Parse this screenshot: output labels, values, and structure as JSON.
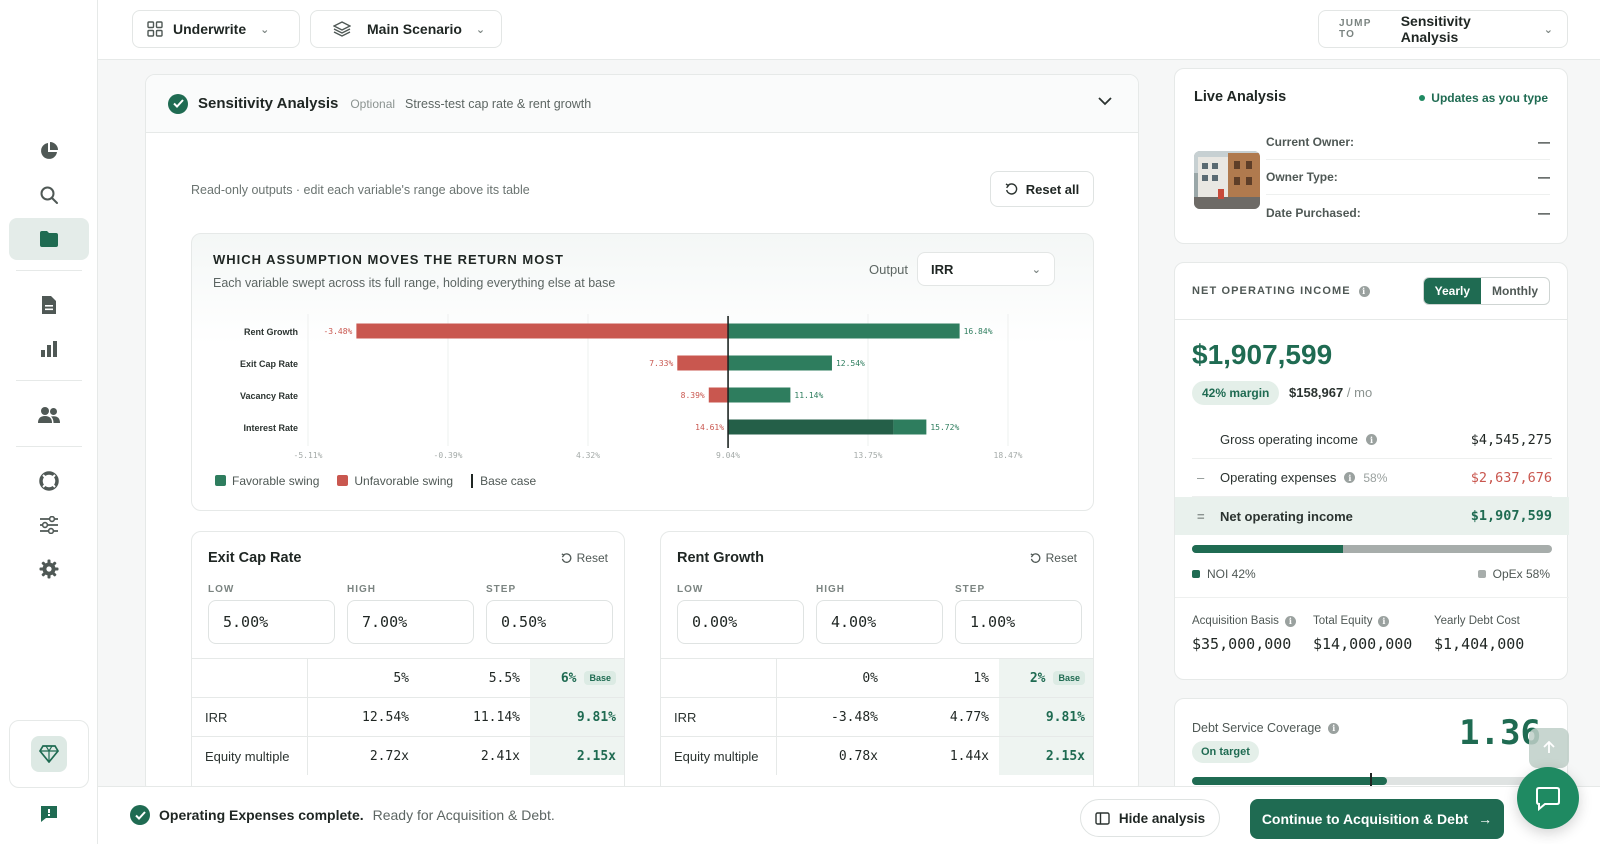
{
  "topbar": {
    "workspace": "Underwrite",
    "scenario": "Main Scenario",
    "jump_label": "JUMP TO",
    "jump_value": "Sensitivity Analysis"
  },
  "section": {
    "title": "Sensitivity Analysis",
    "optional": "Optional",
    "description": "Stress-test cap rate & rent growth",
    "readonly_note": "Read-only outputs · edit each variable's range above its table",
    "reset_all": "Reset all"
  },
  "tornado": {
    "title": "WHICH ASSUMPTION MOVES THE RETURN MOST",
    "subtitle": "Each variable swept across its full range, holding everything else at base",
    "output_label": "Output",
    "output_value": "IRR",
    "legend": {
      "favorable": "Favorable swing",
      "unfavorable": "Unfavorable swing",
      "base": "Base case"
    },
    "colors": {
      "favorable": "#2e7d5e",
      "unfavorable": "#c9574f",
      "base": "#1f2623"
    }
  },
  "chart_data": {
    "type": "bar",
    "orientation": "horizontal-tornado",
    "base": 9.04,
    "xlim": [
      -5.11,
      18.47
    ],
    "x_ticks": [
      "-5.11%",
      "-0.39%",
      "4.32%",
      "9.04%",
      "13.75%",
      "18.47%"
    ],
    "categories": [
      "Rent Growth",
      "Exit Cap Rate",
      "Vacancy Rate",
      "Interest Rate"
    ],
    "low": [
      -3.48,
      7.33,
      8.39,
      14.61
    ],
    "high": [
      16.84,
      12.54,
      11.14,
      15.72
    ],
    "low_labels": [
      "-3.48%",
      "7.33%",
      "8.39%",
      "14.61%"
    ],
    "high_labels": [
      "16.84%",
      "12.54%",
      "11.14%",
      "15.72%"
    ]
  },
  "tables": [
    {
      "title": "Exit Cap Rate",
      "reset": "Reset",
      "fields": [
        {
          "label": "LOW",
          "value": "5.00%"
        },
        {
          "label": "HIGH",
          "value": "7.00%"
        },
        {
          "label": "STEP",
          "value": "0.50%"
        }
      ],
      "columns": [
        "5%",
        "5.5%",
        "6%"
      ],
      "base_badge": "Base",
      "rows": [
        {
          "label": "IRR",
          "values": [
            "12.54%",
            "11.14%",
            "9.81%"
          ]
        },
        {
          "label": "Equity multiple",
          "values": [
            "2.72x",
            "2.41x",
            "2.15x"
          ]
        }
      ]
    },
    {
      "title": "Rent Growth",
      "reset": "Reset",
      "fields": [
        {
          "label": "LOW",
          "value": "0.00%"
        },
        {
          "label": "HIGH",
          "value": "4.00%"
        },
        {
          "label": "STEP",
          "value": "1.00%"
        }
      ],
      "columns": [
        "0%",
        "1%",
        "2%"
      ],
      "base_badge": "Base",
      "rows": [
        {
          "label": "IRR",
          "values": [
            "-3.48%",
            "4.77%",
            "9.81%"
          ]
        },
        {
          "label": "Equity multiple",
          "values": [
            "0.78x",
            "1.44x",
            "2.15x"
          ]
        }
      ]
    }
  ],
  "live": {
    "title": "Live Analysis",
    "status": "Updates as you type",
    "owner_rows": [
      {
        "label": "Current Owner:",
        "value": "—"
      },
      {
        "label": "Owner Type:",
        "value": "—"
      },
      {
        "label": "Date Purchased:",
        "value": "—"
      }
    ]
  },
  "noi": {
    "label": "NET OPERATING INCOME",
    "toggle": [
      "Yearly",
      "Monthly"
    ],
    "value": "$1,907,599",
    "margin": "42% margin",
    "per_month": "$158,967",
    "per_month_unit": "mo",
    "rows": [
      {
        "sym": "",
        "name": "Gross operating income",
        "pct": "",
        "value": "$4,545,275",
        "color": "#1f2623"
      },
      {
        "sym": "–",
        "name": "Operating expenses",
        "pct": "58%",
        "value": "$2,637,676",
        "color": "#c9574f"
      },
      {
        "sym": "=",
        "name": "Net operating income",
        "pct": "",
        "value": "$1,907,599",
        "color": "#1f6b52"
      }
    ],
    "noi_share": 0.42,
    "noi_legend": "NOI 42%",
    "opex_legend": "OpEx 58%",
    "stats": [
      {
        "label": "Acquisition Basis",
        "value": "$35,000,000"
      },
      {
        "label": "Total Equity",
        "value": "$14,000,000"
      },
      {
        "label": "Yearly Debt Cost",
        "value": "$1,404,000"
      }
    ]
  },
  "dscr": {
    "label": "Debt Service Coverage",
    "value": "1.36",
    "badge": "On target"
  },
  "bottom": {
    "status_bold": "Operating Expenses complete.",
    "status_rest": "Ready for Acquisition & Debt.",
    "hide": "Hide analysis",
    "continue": "Continue to Acquisition & Debt"
  }
}
